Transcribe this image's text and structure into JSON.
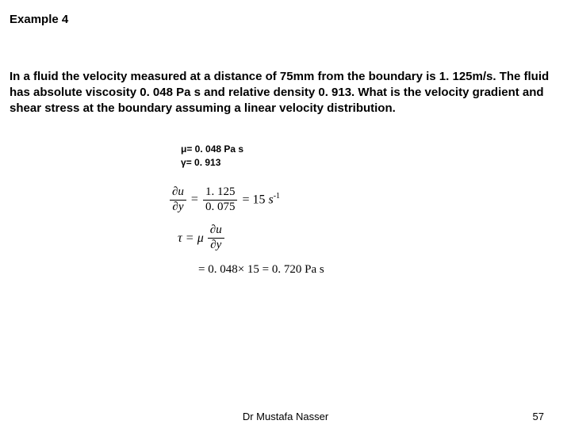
{
  "title": "Example 4",
  "problem": "In a fluid the velocity measured at a distance of 75mm from the boundary is 1. 125m/s. The fluid has absolute viscosity 0. 048 Pa s and relative density 0. 913. What is the velocity gradient and shear stress at the boundary assuming a linear velocity distribution.",
  "given": {
    "mu": "= 0. 048 Pa s",
    "gamma": "= 0. 913"
  },
  "eq1": {
    "lhs_num": "u",
    "lhs_den": "y",
    "mid_num": "1. 125",
    "mid_den": "0. 075",
    "rhs": "= 15",
    "unit": "s",
    "exp": "-1"
  },
  "eq2": {
    "num": "u",
    "den": "y"
  },
  "eq3": "= 0. 048× 15 = 0. 720 Pa s",
  "footer": {
    "author": "Dr Mustafa Nasser",
    "page": "57"
  },
  "colors": {
    "background": "#ffffff",
    "text": "#000000"
  }
}
